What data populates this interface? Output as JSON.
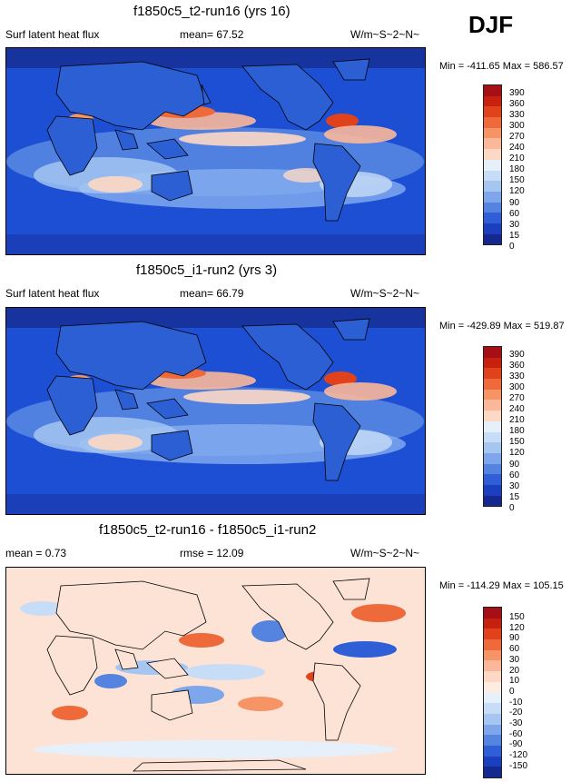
{
  "season": "DJF",
  "panels": [
    {
      "title": "f1850c5_t2-run16 (yrs 16)",
      "left_label": "Surf latent heat flux",
      "center_label": "mean=  67.52",
      "units": "W/m~S~2~N~",
      "minmax": "Min = -411.65 Max = 586.57",
      "base_color": "#1d4fd4",
      "colorbar": {
        "colors": [
          "#a50f15",
          "#c8200e",
          "#e0421b",
          "#ee6a3a",
          "#f79466",
          "#fbb799",
          "#fdd8c4",
          "#e6f0fa",
          "#c7dcf6",
          "#a6c6f2",
          "#7ea6eb",
          "#5483e0",
          "#2f5ed6",
          "#1c3fbf",
          "#14288f"
        ],
        "labels": [
          "390",
          "360",
          "330",
          "300",
          "270",
          "240",
          "210",
          "180",
          "150",
          "120",
          "90",
          "60",
          "30",
          "15",
          "0"
        ]
      }
    },
    {
      "title": "f1850c5_i1-run2 (yrs 3)",
      "left_label": "Surf latent heat flux",
      "center_label": "mean=  66.79",
      "units": "W/m~S~2~N~",
      "minmax": "Min = -429.89 Max = 519.87",
      "base_color": "#1d4fd4",
      "colorbar": {
        "colors": [
          "#a50f15",
          "#c8200e",
          "#e0421b",
          "#ee6a3a",
          "#f79466",
          "#fbb799",
          "#fdd8c4",
          "#e6f0fa",
          "#c7dcf6",
          "#a6c6f2",
          "#7ea6eb",
          "#5483e0",
          "#2f5ed6",
          "#1c3fbf",
          "#14288f"
        ],
        "labels": [
          "390",
          "360",
          "330",
          "300",
          "270",
          "240",
          "210",
          "180",
          "150",
          "120",
          "90",
          "60",
          "30",
          "15",
          "0"
        ]
      }
    },
    {
      "title": "f1850c5_t2-run16 - f1850c5_i1-run2",
      "left_label": "mean =   0.73",
      "center_label": "rmse =   12.09",
      "units": "W/m~S~2~N~",
      "minmax": "Min = -114.29 Max = 105.15",
      "base_color": "#fde3d6",
      "colorbar": {
        "colors": [
          "#a50f15",
          "#c8200e",
          "#e0421b",
          "#ee6a3a",
          "#f79466",
          "#fbb799",
          "#fdd8c4",
          "#fdece2",
          "#e6f0fa",
          "#c7dcf6",
          "#a6c6f2",
          "#7ea6eb",
          "#5483e0",
          "#2f5ed6",
          "#1c3fbf",
          "#14288f"
        ],
        "labels": [
          "150",
          "120",
          "90",
          "60",
          "30",
          "20",
          "10",
          "0",
          "-10",
          "-20",
          "-30",
          "-60",
          "-90",
          "-120",
          "-150"
        ]
      }
    }
  ]
}
